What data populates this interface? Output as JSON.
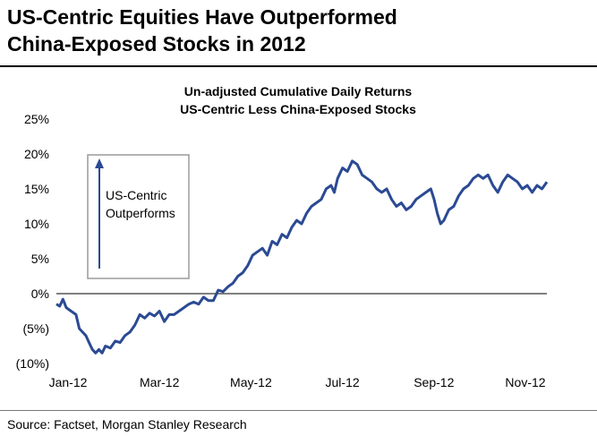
{
  "headline": {
    "line1": "US-Centric Equities Have Outperformed",
    "line2": "China-Exposed Stocks in 2012"
  },
  "source": "Source: Factset, Morgan Stanley Research",
  "colors": {
    "series": "#2b4a93",
    "axis": "#000000",
    "box": "#9a9a9a",
    "arrow": "#2b4a93"
  },
  "chart_data": {
    "type": "line",
    "title": "Un-adjusted Cumulative Daily Returns",
    "subtitle": "US-Centric Less China-Exposed Stocks",
    "xlabel": "",
    "ylabel": "",
    "ylim": [
      -10,
      25
    ],
    "y_ticks": [
      {
        "value": 25,
        "label": "25%"
      },
      {
        "value": 20,
        "label": "20%"
      },
      {
        "value": 15,
        "label": "15%"
      },
      {
        "value": 10,
        "label": "10%"
      },
      {
        "value": 5,
        "label": "5%"
      },
      {
        "value": 0,
        "label": "0%"
      },
      {
        "value": -5,
        "label": "(5%)"
      },
      {
        "value": -10,
        "label": "(10%)"
      }
    ],
    "x_ticks": [
      "Jan-12",
      "Mar-12",
      "May-12",
      "Jul-12",
      "Sep-12",
      "Nov-12"
    ],
    "grid": false,
    "annotation": {
      "line1": "US-Centric",
      "line2": "Outperforms"
    },
    "series": [
      {
        "values": [
          [
            0,
            -1.5
          ],
          [
            2,
            -1.8
          ],
          [
            4,
            -0.8
          ],
          [
            6,
            -2.0
          ],
          [
            9,
            -2.5
          ],
          [
            12,
            -3.0
          ],
          [
            14,
            -5.0
          ],
          [
            16,
            -5.5
          ],
          [
            18,
            -6.0
          ],
          [
            20,
            -7.0
          ],
          [
            22,
            -8.0
          ],
          [
            24,
            -8.5
          ],
          [
            26,
            -8.0
          ],
          [
            28,
            -8.5
          ],
          [
            30,
            -7.5
          ],
          [
            33,
            -7.8
          ],
          [
            36,
            -6.8
          ],
          [
            39,
            -7.0
          ],
          [
            42,
            -6.0
          ],
          [
            45,
            -5.5
          ],
          [
            48,
            -4.5
          ],
          [
            51,
            -3.0
          ],
          [
            54,
            -3.5
          ],
          [
            57,
            -2.8
          ],
          [
            60,
            -3.2
          ],
          [
            63,
            -2.5
          ],
          [
            66,
            -4.0
          ],
          [
            69,
            -3.0
          ],
          [
            72,
            -3.0
          ],
          [
            75,
            -2.5
          ],
          [
            78,
            -2.0
          ],
          [
            81,
            -1.5
          ],
          [
            84,
            -1.2
          ],
          [
            87,
            -1.5
          ],
          [
            90,
            -0.5
          ],
          [
            93,
            -1.0
          ],
          [
            96,
            -1.0
          ],
          [
            99,
            0.5
          ],
          [
            102,
            0.3
          ],
          [
            105,
            1.0
          ],
          [
            108,
            1.5
          ],
          [
            111,
            2.5
          ],
          [
            114,
            3.0
          ],
          [
            117,
            4.0
          ],
          [
            120,
            5.5
          ],
          [
            123,
            6.0
          ],
          [
            126,
            6.5
          ],
          [
            129,
            5.5
          ],
          [
            132,
            7.5
          ],
          [
            135,
            7.0
          ],
          [
            138,
            8.5
          ],
          [
            141,
            8.0
          ],
          [
            144,
            9.5
          ],
          [
            147,
            10.5
          ],
          [
            150,
            10.0
          ],
          [
            153,
            11.5
          ],
          [
            156,
            12.5
          ],
          [
            159,
            13.0
          ],
          [
            162,
            13.5
          ],
          [
            165,
            15.0
          ],
          [
            168,
            15.5
          ],
          [
            170,
            14.5
          ],
          [
            172,
            16.5
          ],
          [
            175,
            18.0
          ],
          [
            178,
            17.5
          ],
          [
            181,
            19.0
          ],
          [
            184,
            18.5
          ],
          [
            187,
            17.0
          ],
          [
            190,
            16.5
          ],
          [
            193,
            16.0
          ],
          [
            196,
            15.0
          ],
          [
            199,
            14.5
          ],
          [
            202,
            15.0
          ],
          [
            205,
            13.5
          ],
          [
            208,
            12.5
          ],
          [
            211,
            13.0
          ],
          [
            214,
            12.0
          ],
          [
            217,
            12.5
          ],
          [
            220,
            13.5
          ],
          [
            223,
            14.0
          ],
          [
            226,
            14.5
          ],
          [
            229,
            15.0
          ],
          [
            231,
            13.5
          ],
          [
            233,
            11.5
          ],
          [
            235,
            10.0
          ],
          [
            237,
            10.5
          ],
          [
            240,
            12.0
          ],
          [
            243,
            12.5
          ],
          [
            246,
            14.0
          ],
          [
            249,
            15.0
          ],
          [
            252,
            15.5
          ],
          [
            255,
            16.5
          ],
          [
            258,
            17.0
          ],
          [
            261,
            16.5
          ],
          [
            264,
            17.0
          ],
          [
            267,
            15.5
          ],
          [
            270,
            14.5
          ],
          [
            273,
            16.0
          ],
          [
            276,
            17.0
          ],
          [
            279,
            16.5
          ],
          [
            282,
            16.0
          ],
          [
            285,
            15.0
          ],
          [
            288,
            15.5
          ],
          [
            291,
            14.5
          ],
          [
            294,
            15.5
          ],
          [
            297,
            15.0
          ],
          [
            300,
            16.0
          ]
        ]
      }
    ]
  }
}
